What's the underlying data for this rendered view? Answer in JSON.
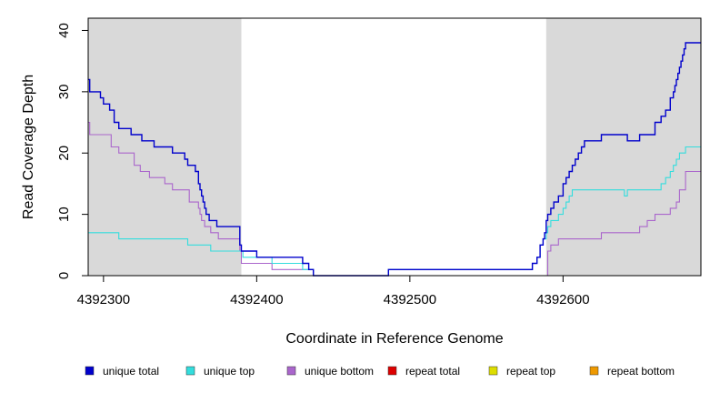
{
  "chart_data": {
    "type": "line",
    "title": "",
    "xlabel": "Coordinate in Reference Genome",
    "ylabel": "Read Coverage Depth",
    "xlim": [
      4392290,
      4392690
    ],
    "ylim": [
      0,
      42
    ],
    "x_ticks": [
      4392300,
      4392400,
      4392500,
      4392600
    ],
    "x_tick_labels": [
      "4392300",
      "4392400",
      "4392500",
      "4392600"
    ],
    "y_ticks": [
      0,
      10,
      20,
      30,
      40
    ],
    "y_tick_labels": [
      "0",
      "10",
      "20",
      "30",
      "40"
    ],
    "shaded_regions": [
      {
        "from": 4392290,
        "to": 4392390,
        "color": "#d9d9d9"
      },
      {
        "from": 4392589,
        "to": 4392690,
        "color": "#d9d9d9"
      }
    ],
    "grid": false,
    "legend_position": "bottom",
    "series": [
      {
        "name": "unique total",
        "color": "#0000cc",
        "x": [
          4392290,
          4392291,
          4392292,
          4392298,
          4392300,
          4392304,
          4392307,
          4392310,
          4392318,
          4392325,
          4392333,
          4392345,
          4392353,
          4392355,
          4392357,
          4392360,
          4392362,
          4392363,
          4392364,
          4392365,
          4392366,
          4392367,
          4392368,
          4392369,
          4392370,
          4392372,
          4392374,
          4392377,
          4392379,
          4392389,
          4392390,
          4392398,
          4392400,
          4392405,
          4392410,
          4392420,
          4392430,
          4392434,
          4392437,
          4392486,
          4392580,
          4392583,
          4392585,
          4392587,
          4392588,
          4392589,
          4392590,
          4392592,
          4392594,
          4392597,
          4392600,
          4392602,
          4392604,
          4392606,
          4392608,
          4392610,
          4392612,
          4392614,
          4392618,
          4392622,
          4392625,
          4392628,
          4392640,
          4392642,
          4392650,
          4392660,
          4392664,
          4392667,
          4392670,
          4392672,
          4392673,
          4392674,
          4392675,
          4392676,
          4392677,
          4392678,
          4392679,
          4392680,
          4392690
        ],
        "y": [
          32,
          30,
          30,
          29,
          28,
          27,
          25,
          24,
          23,
          22,
          21,
          20,
          19,
          18,
          18,
          17,
          15,
          14,
          13,
          12,
          11,
          10,
          10,
          9,
          9,
          9,
          8,
          8,
          8,
          5,
          4,
          4,
          3,
          3,
          3,
          3,
          2,
          1,
          0,
          1,
          2,
          3,
          5,
          6,
          7,
          9,
          10,
          11,
          12,
          13,
          15,
          16,
          17,
          18,
          19,
          20,
          21,
          22,
          22,
          22,
          23,
          23,
          23,
          22,
          23,
          25,
          26,
          27,
          29,
          30,
          31,
          32,
          33,
          34,
          35,
          36,
          37,
          38,
          38
        ]
      },
      {
        "name": "unique top",
        "color": "#33dddd",
        "x": [
          4392290,
          4392310,
          4392330,
          4392343,
          4392355,
          4392360,
          4392370,
          4392389,
          4392391,
          4392400,
          4392405,
          4392410,
          4392420,
          4392430,
          4392437,
          4392486,
          4392580,
          4392583,
          4392585,
          4392587,
          4392589,
          4392590,
          4392592,
          4392594,
          4392597,
          4392600,
          4392602,
          4392604,
          4392606,
          4392610,
          4392612,
          4392614,
          4392640,
          4392642,
          4392660,
          4392664,
          4392667,
          4392670,
          4392672,
          4392674,
          4392676,
          4392680,
          4392690
        ],
        "y": [
          7,
          6,
          6,
          6,
          5,
          5,
          4,
          4,
          3,
          3,
          3,
          2,
          2,
          1,
          0,
          1,
          2,
          3,
          5,
          6,
          7,
          8,
          9,
          9,
          10,
          11,
          12,
          13,
          14,
          14,
          14,
          14,
          13,
          14,
          14,
          15,
          16,
          17,
          18,
          19,
          20,
          21,
          21
        ]
      },
      {
        "name": "unique bottom",
        "color": "#aa66cc",
        "x": [
          4392290,
          4392291,
          4392300,
          4392305,
          4392310,
          4392320,
          4392324,
          4392330,
          4392340,
          4392345,
          4392355,
          4392356,
          4392360,
          4392362,
          4392363,
          4392364,
          4392366,
          4392370,
          4392375,
          4392389,
          4392390,
          4392400,
          4392410,
          4392430,
          4392437,
          4392589,
          4392590,
          4392592,
          4392597,
          4392605,
          4392610,
          4392615,
          4392620,
          4392625,
          4392630,
          4392640,
          4392650,
          4392655,
          4392660,
          4392665,
          4392670,
          4392674,
          4392676,
          4392680,
          4392690
        ],
        "y": [
          25,
          23,
          23,
          21,
          20,
          18,
          17,
          16,
          15,
          14,
          14,
          12,
          12,
          11,
          10,
          9,
          8,
          7,
          6,
          4,
          2,
          2,
          1,
          1,
          0,
          0,
          4,
          5,
          6,
          6,
          6,
          6,
          6,
          7,
          7,
          7,
          8,
          9,
          10,
          10,
          11,
          12,
          14,
          17,
          17
        ]
      },
      {
        "name": "repeat total",
        "color": "#dd0000",
        "x": [
          4392290,
          4392690
        ],
        "y": [
          0,
          0
        ]
      },
      {
        "name": "repeat top",
        "color": "#dddd00",
        "x": [
          4392290,
          4392690
        ],
        "y": [
          0,
          0
        ]
      },
      {
        "name": "repeat bottom",
        "color": "#ee9900",
        "x": [
          4392290,
          4392690
        ],
        "y": [
          0,
          0
        ]
      }
    ]
  }
}
